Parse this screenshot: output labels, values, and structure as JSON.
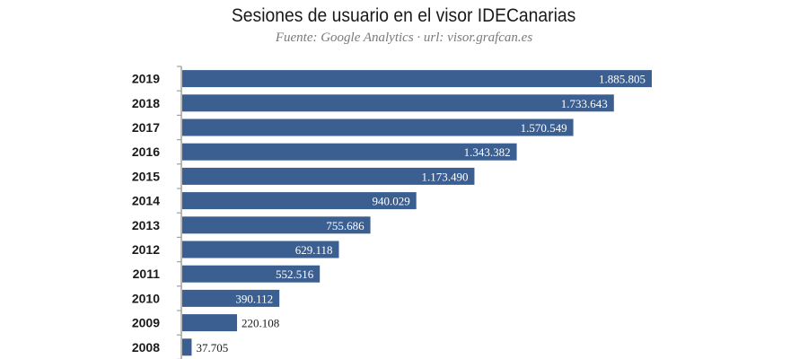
{
  "title": "Sesiones de usuario en el visor IDECanarias",
  "subtitle": "Fuente: Google Analytics · url: visor.grafcan.es",
  "colors": {
    "bar": "#3b5f91",
    "axis": "#a0a0a0",
    "label_inside": "#ffffff",
    "label_outside": "#1a1a1a"
  },
  "chart_data": {
    "type": "bar",
    "orientation": "horizontal",
    "title": "Sesiones de usuario en el visor IDECanarias",
    "subtitle": "Fuente: Google Analytics · url: visor.grafcan.es",
    "categories": [
      "2019",
      "2018",
      "2017",
      "2016",
      "2015",
      "2014",
      "2013",
      "2012",
      "2011",
      "2010",
      "2009",
      "2008"
    ],
    "values": [
      1885805,
      1733643,
      1570549,
      1343382,
      1173490,
      940029,
      755686,
      629118,
      552516,
      390112,
      220108,
      37705
    ],
    "value_labels": [
      "1.885.805",
      "1.733.643",
      "1.570.549",
      "1.343.382",
      "1.173.490",
      "940.029",
      "755.686",
      "629.118",
      "552.516",
      "390.112",
      "220.108",
      "37.705"
    ],
    "xlim": [
      0,
      1885805
    ],
    "grid": false,
    "legend": "none"
  }
}
